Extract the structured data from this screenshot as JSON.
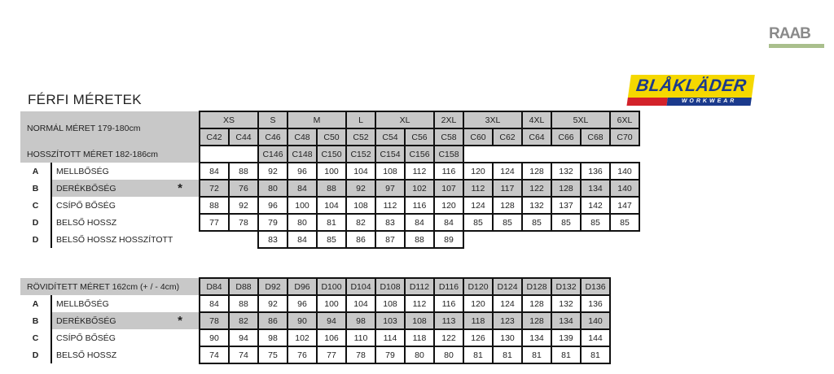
{
  "title": "FÉRFI MÉRETEK",
  "logos": {
    "raab": "RAAB",
    "blaklader": "BLÅKLÄDER",
    "blaklader_sub": "WORKWEAR"
  },
  "colors": {
    "header_gray": "#c8c8c8",
    "border": "#111111"
  },
  "normal": {
    "label": "NORMÁL MÉRET 179-180cm",
    "long_label": "HOSSZÍTOTT MÉRET 182-186cm",
    "groups": [
      {
        "label": "XS",
        "span": 2
      },
      {
        "label": "S",
        "span": 1
      },
      {
        "label": "M",
        "span": 2
      },
      {
        "label": "L",
        "span": 1
      },
      {
        "label": "XL",
        "span": 2
      },
      {
        "label": "2XL",
        "span": 1
      },
      {
        "label": "3XL",
        "span": 2
      },
      {
        "label": "4XL",
        "span": 1
      },
      {
        "label": "5XL",
        "span": 2
      },
      {
        "label": "6XL",
        "span": 1
      }
    ],
    "sizes": [
      "C42",
      "C44",
      "C46",
      "C48",
      "C50",
      "C52",
      "C54",
      "C56",
      "C58",
      "C60",
      "C62",
      "C64",
      "C66",
      "C68",
      "C70"
    ],
    "long_sizes": [
      "",
      "",
      "C146",
      "C148",
      "C150",
      "C152",
      "C154",
      "C156",
      "C158"
    ],
    "rows": [
      {
        "letter": "A",
        "label": "MELLBŐSÉG",
        "star": "",
        "values": [
          "84",
          "88",
          "92",
          "96",
          "100",
          "104",
          "108",
          "112",
          "116",
          "120",
          "124",
          "128",
          "132",
          "136",
          "140"
        ]
      },
      {
        "letter": "B",
        "label": "DERÉKBŐSÉG",
        "star": "*",
        "values": [
          "72",
          "76",
          "80",
          "84",
          "88",
          "92",
          "97",
          "102",
          "107",
          "112",
          "117",
          "122",
          "128",
          "134",
          "140"
        ]
      },
      {
        "letter": "C",
        "label": "CSÍPŐ BŐSÉG",
        "star": "",
        "values": [
          "88",
          "92",
          "96",
          "100",
          "104",
          "108",
          "112",
          "116",
          "120",
          "124",
          "128",
          "132",
          "137",
          "142",
          "147"
        ]
      },
      {
        "letter": "D",
        "label": "BELSŐ HOSSZ",
        "star": "",
        "values": [
          "77",
          "78",
          "79",
          "80",
          "81",
          "82",
          "83",
          "84",
          "84",
          "85",
          "85",
          "85",
          "85",
          "85",
          "85"
        ]
      },
      {
        "letter": "D",
        "label": "BELSŐ HOSSZ HOSSZÍTOTT",
        "star": "",
        "values": [
          "",
          "",
          "83",
          "84",
          "85",
          "86",
          "87",
          "88",
          "89"
        ]
      }
    ]
  },
  "short": {
    "label": "RÖVIDÍTETT MÉRET 162cm (+ / - 4cm)",
    "sizes": [
      "D84",
      "D88",
      "D92",
      "D96",
      "D100",
      "D104",
      "D108",
      "D112",
      "D116",
      "D120",
      "D124",
      "D128",
      "D132",
      "D136"
    ],
    "rows": [
      {
        "letter": "A",
        "label": "MELLBŐSÉG",
        "star": "",
        "values": [
          "84",
          "88",
          "92",
          "96",
          "100",
          "104",
          "108",
          "112",
          "116",
          "120",
          "124",
          "128",
          "132",
          "136"
        ]
      },
      {
        "letter": "B",
        "label": "DERÉKBŐSÉG",
        "star": "*",
        "values": [
          "78",
          "82",
          "86",
          "90",
          "94",
          "98",
          "103",
          "108",
          "113",
          "118",
          "123",
          "128",
          "134",
          "140"
        ]
      },
      {
        "letter": "C",
        "label": "CSÍPŐ BŐSÉG",
        "star": "",
        "values": [
          "90",
          "94",
          "98",
          "102",
          "106",
          "110",
          "114",
          "118",
          "122",
          "126",
          "130",
          "134",
          "139",
          "144"
        ]
      },
      {
        "letter": "D",
        "label": "BELSŐ HOSSZ",
        "star": "",
        "values": [
          "74",
          "74",
          "75",
          "76",
          "77",
          "78",
          "79",
          "80",
          "80",
          "81",
          "81",
          "81",
          "81",
          "81"
        ]
      }
    ]
  }
}
